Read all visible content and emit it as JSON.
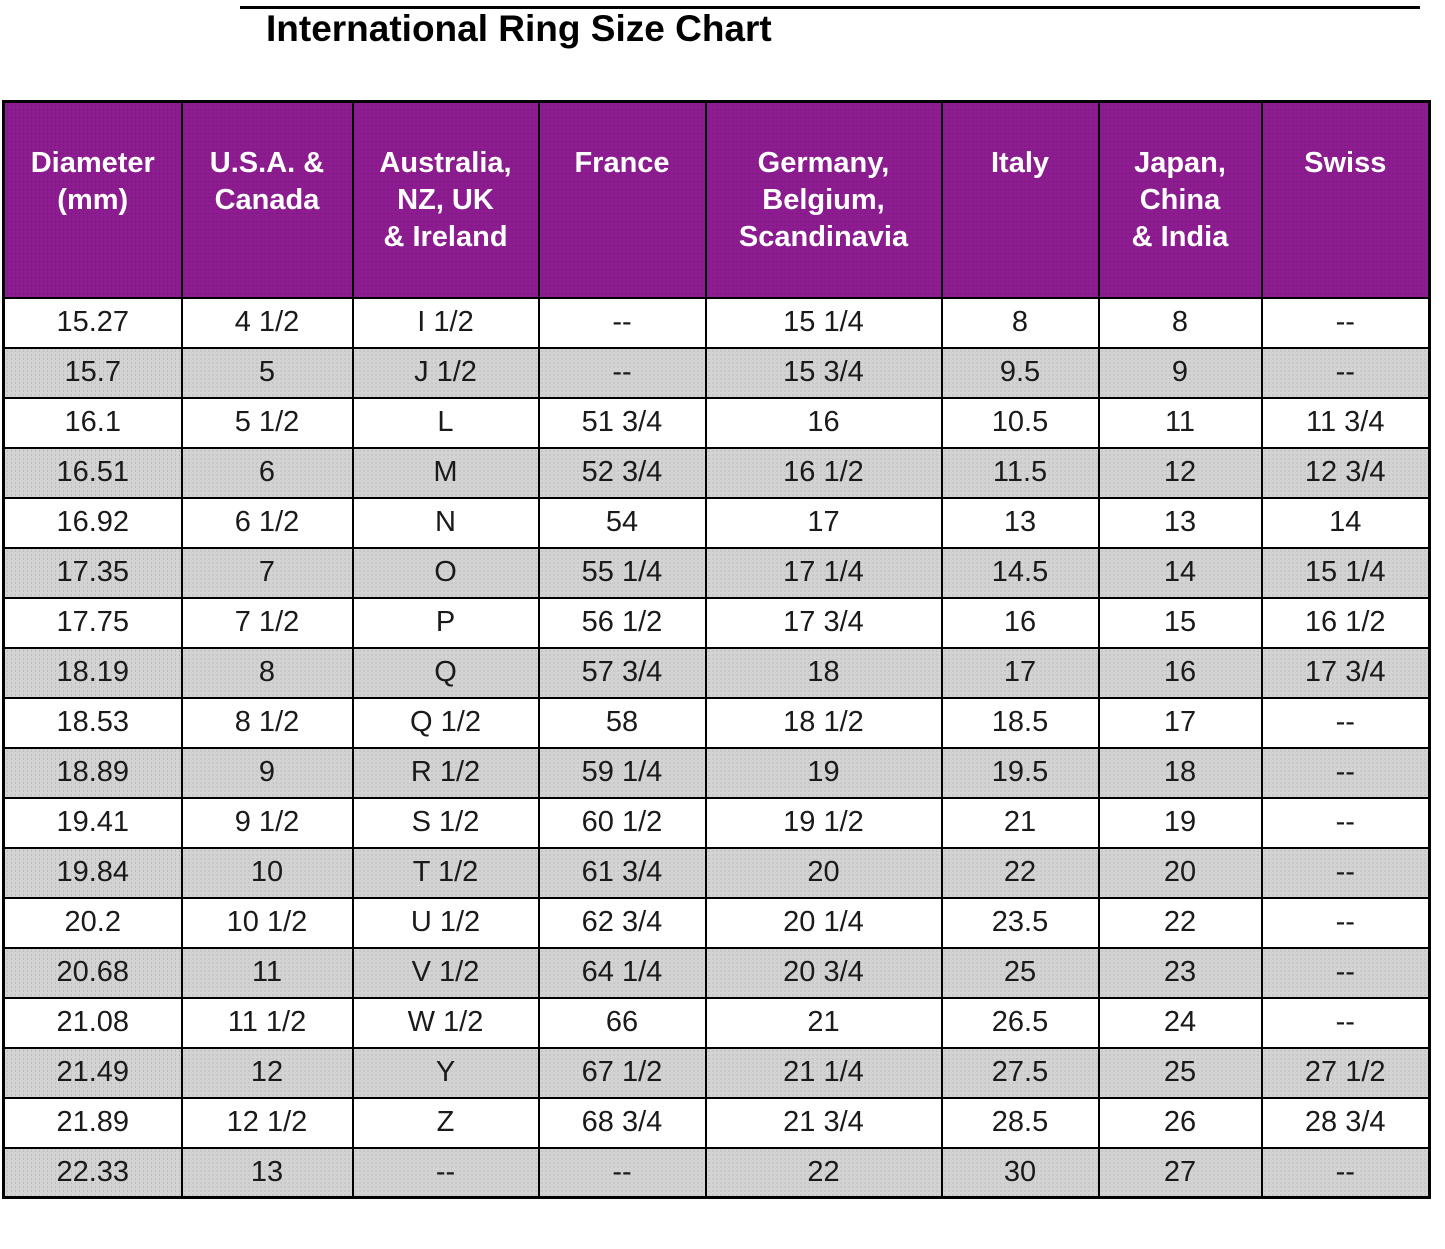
{
  "title": "International Ring Size Chart",
  "colors": {
    "header_bg": "#8C1C90",
    "header_text": "#FFFFFF",
    "row_alt_bg": "#D3D3D3",
    "border": "#000000",
    "text": "#1A1A1A"
  },
  "table": {
    "columns": [
      "Diameter\n(mm)",
      "U.S.A. &\nCanada",
      "Australia,\nNZ, UK\n& Ireland",
      "France",
      "Germany,\nBelgium,\nScandinavia",
      "Italy",
      "Japan,\nChina\n& India",
      "Swiss"
    ],
    "rows": [
      [
        "15.27",
        "4 1/2",
        "I 1/2",
        "--",
        "15 1/4",
        "8",
        "8",
        "--"
      ],
      [
        "15.7",
        "5",
        "J 1/2",
        "--",
        "15 3/4",
        "9.5",
        "9",
        "--"
      ],
      [
        "16.1",
        "5 1/2",
        "L",
        "51 3/4",
        "16",
        "10.5",
        "11",
        "11 3/4"
      ],
      [
        "16.51",
        "6",
        "M",
        "52 3/4",
        "16 1/2",
        "11.5",
        "12",
        "12 3/4"
      ],
      [
        "16.92",
        "6 1/2",
        "N",
        "54",
        "17",
        "13",
        "13",
        "14"
      ],
      [
        "17.35",
        "7",
        "O",
        "55 1/4",
        "17 1/4",
        "14.5",
        "14",
        "15 1/4"
      ],
      [
        "17.75",
        "7 1/2",
        "P",
        "56 1/2",
        "17 3/4",
        "16",
        "15",
        "16 1/2"
      ],
      [
        "18.19",
        "8",
        "Q",
        "57 3/4",
        "18",
        "17",
        "16",
        "17 3/4"
      ],
      [
        "18.53",
        "8 1/2",
        "Q 1/2",
        "58",
        "18 1/2",
        "18.5",
        "17",
        "--"
      ],
      [
        "18.89",
        "9",
        "R 1/2",
        "59 1/4",
        "19",
        "19.5",
        "18",
        "--"
      ],
      [
        "19.41",
        "9 1/2",
        "S 1/2",
        "60 1/2",
        "19 1/2",
        "21",
        "19",
        "--"
      ],
      [
        "19.84",
        "10",
        "T 1/2",
        "61 3/4",
        "20",
        "22",
        "20",
        "--"
      ],
      [
        "20.2",
        "10 1/2",
        "U 1/2",
        "62 3/4",
        "20 1/4",
        "23.5",
        "22",
        "--"
      ],
      [
        "20.68",
        "11",
        "V 1/2",
        "64 1/4",
        "20 3/4",
        "25",
        "23",
        "--"
      ],
      [
        "21.08",
        "11 1/2",
        "W 1/2",
        "66",
        "21",
        "26.5",
        "24",
        "--"
      ],
      [
        "21.49",
        "12",
        "Y",
        "67 1/2",
        "21 1/4",
        "27.5",
        "25",
        "27 1/2"
      ],
      [
        "21.89",
        "12 1/2",
        "Z",
        "68 3/4",
        "21 3/4",
        "28.5",
        "26",
        "28 3/4"
      ],
      [
        "22.33",
        "13",
        "--",
        "--",
        "22",
        "30",
        "27",
        "--"
      ]
    ]
  }
}
